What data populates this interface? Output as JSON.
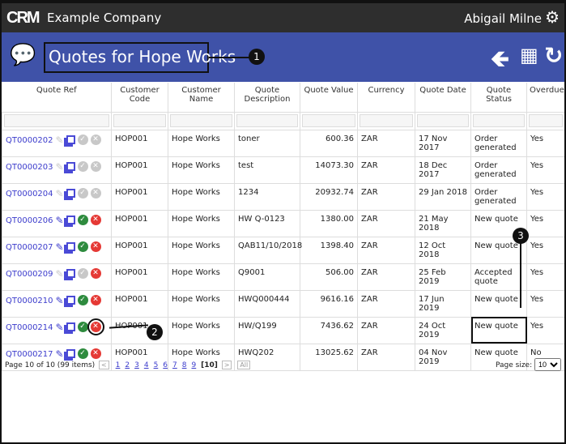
{
  "header": {
    "logo": "CRM",
    "company": "Example Company",
    "user": "Abigail Milne"
  },
  "page": {
    "title": "Quotes for Hope Works"
  },
  "columns": [
    "Quote Ref",
    "Customer Code",
    "Customer Name",
    "Quote Description",
    "Quote Value",
    "Currency",
    "Quote Date",
    "Quote Status",
    "Overdue"
  ],
  "rows": [
    {
      "ref": "QT0000202",
      "code": "HOP001",
      "name": "Hope Works",
      "desc": "toner",
      "value": "600.36",
      "currency": "ZAR",
      "date": "17 Nov 2017",
      "status": "Order generated",
      "overdue": "Yes",
      "edit": false,
      "accept": false,
      "reject": false
    },
    {
      "ref": "QT0000203",
      "code": "HOP001",
      "name": "Hope Works",
      "desc": "test",
      "value": "14073.30",
      "currency": "ZAR",
      "date": "18 Dec 2017",
      "status": "Order generated",
      "overdue": "Yes",
      "edit": false,
      "accept": false,
      "reject": false
    },
    {
      "ref": "QT0000204",
      "code": "HOP001",
      "name": "Hope Works",
      "desc": "1234",
      "value": "20932.74",
      "currency": "ZAR",
      "date": "29 Jan 2018",
      "status": "Order generated",
      "overdue": "Yes",
      "edit": false,
      "accept": false,
      "reject": false
    },
    {
      "ref": "QT0000206",
      "code": "HOP001",
      "name": "Hope Works",
      "desc": "HW Q-0123",
      "value": "1380.00",
      "currency": "ZAR",
      "date": "21 May 2018",
      "status": "New quote",
      "overdue": "Yes",
      "edit": true,
      "accept": true,
      "reject": true
    },
    {
      "ref": "QT0000207",
      "code": "HOP001",
      "name": "Hope Works",
      "desc": "QAB11/10/2018",
      "value": "1398.40",
      "currency": "ZAR",
      "date": "12 Oct 2018",
      "status": "New quote",
      "overdue": "Yes",
      "edit": true,
      "accept": true,
      "reject": true
    },
    {
      "ref": "QT0000209",
      "code": "HOP001",
      "name": "Hope Works",
      "desc": "Q9001",
      "value": "506.00",
      "currency": "ZAR",
      "date": "25 Feb 2019",
      "status": "Accepted quote",
      "overdue": "Yes",
      "edit": false,
      "accept": false,
      "reject": true
    },
    {
      "ref": "QT0000210",
      "code": "HOP001",
      "name": "Hope Works",
      "desc": "HWQ000444",
      "value": "9616.16",
      "currency": "ZAR",
      "date": "17 Jun 2019",
      "status": "New quote",
      "overdue": "Yes",
      "edit": true,
      "accept": true,
      "reject": true
    },
    {
      "ref": "QT0000214",
      "code": "HOP001",
      "name": "Hope Works",
      "desc": "HW/Q199",
      "value": "7436.62",
      "currency": "ZAR",
      "date": "24 Oct 2019",
      "status": "New quote",
      "overdue": "Yes",
      "edit": true,
      "accept": true,
      "reject": true
    },
    {
      "ref": "QT0000217",
      "code": "HOP001",
      "name": "Hope Works",
      "desc": "HWQ202",
      "value": "13025.62",
      "currency": "ZAR",
      "date": "04 Nov 2019",
      "status": "New quote",
      "overdue": "No",
      "edit": true,
      "accept": true,
      "reject": true
    }
  ],
  "pager": {
    "summary": "Page 10 of 10 (99 items)",
    "pages": [
      "1",
      "2",
      "3",
      "4",
      "5",
      "6",
      "7",
      "8",
      "9"
    ],
    "current": "[10]",
    "all": "All",
    "size_label": "Page size:",
    "size": "10"
  },
  "callouts": [
    "1",
    "2",
    "3"
  ],
  "colors": {
    "topbar": "#2e2e2e",
    "titlebar": "#3f52a8",
    "link": "#3b3bcc",
    "accept": "#2e8b3e",
    "reject": "#e53935",
    "disabled": "#c8c8c8"
  }
}
